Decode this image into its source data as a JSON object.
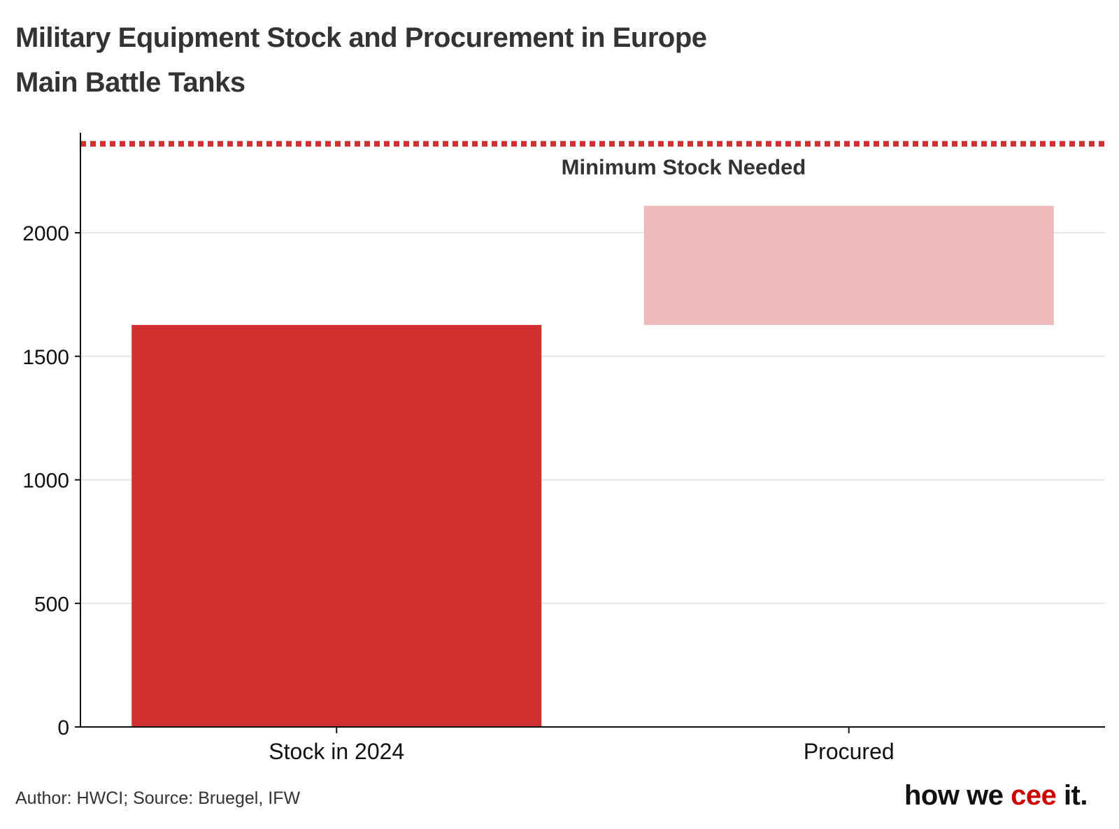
{
  "title": "Military Equipment Stock and Procurement in Europe",
  "subtitle": "Main Battle Tanks",
  "chart_data": {
    "type": "bar",
    "subtype": "waterfall",
    "categories": [
      "Stock in 2024",
      "Procured"
    ],
    "bars": [
      {
        "category": "Stock in 2024",
        "start": 0,
        "end": 1627,
        "color": "#d03030"
      },
      {
        "category": "Procured",
        "start": 1627,
        "end": 2109,
        "color": "#ecbab8"
      }
    ],
    "reference_line": {
      "label": "Minimum Stock Needed",
      "value": 2360,
      "color": "#d03030",
      "style": "dotted"
    },
    "yticks": [
      0,
      500,
      1000,
      1500,
      2000
    ],
    "ylim": [
      0,
      2400
    ],
    "xlabel": "",
    "ylabel": "",
    "grid": true
  },
  "footer": {
    "source": "Author: HWCI; Source: Bruegel, IFW",
    "brand_part1": "how we ",
    "brand_accent": "cee",
    "brand_part2": " it."
  }
}
